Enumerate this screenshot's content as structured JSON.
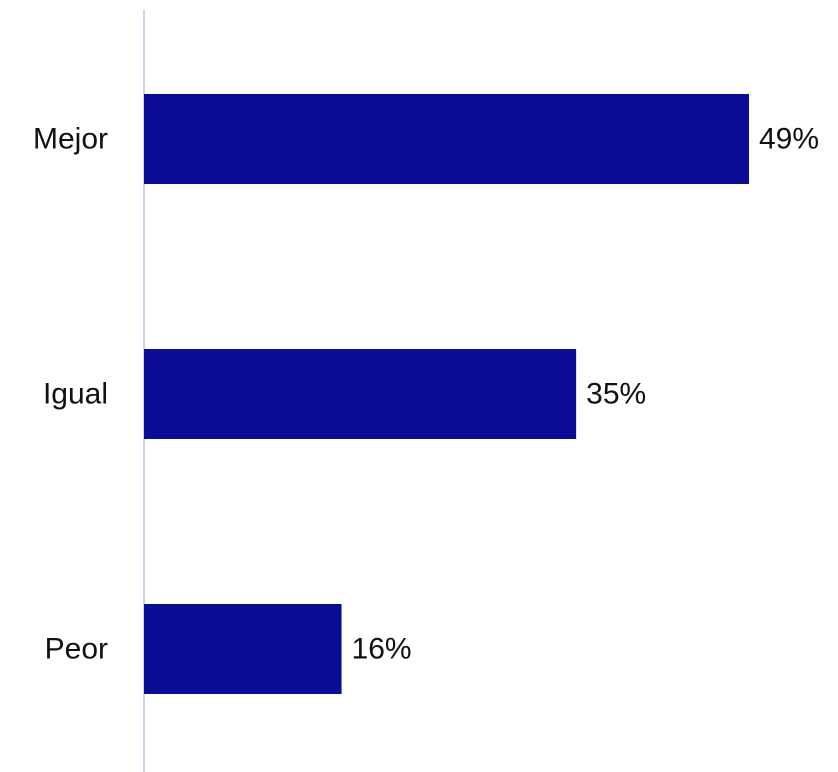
{
  "chart_data": {
    "type": "bar",
    "orientation": "horizontal",
    "categories": [
      "Mejor",
      "Igual",
      "Peor"
    ],
    "values": [
      49,
      35,
      16
    ],
    "value_labels": [
      "49%",
      "35%",
      "16%"
    ],
    "unit": "%",
    "xlim": [
      0,
      49
    ],
    "title": "",
    "xlabel": "",
    "ylabel": "",
    "grid": false,
    "legend": "none",
    "bar_color": "#0A0D96",
    "axis_color": "#B7C4E6"
  }
}
